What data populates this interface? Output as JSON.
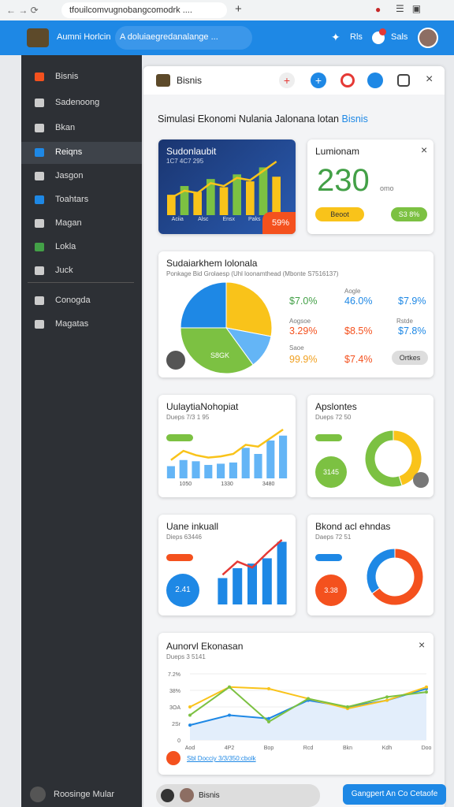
{
  "browser": {
    "url": "tfouilcomvugnobangcomodrk ...."
  },
  "header": {
    "brand": "Aumni Horlcin",
    "search": "A doluiaegredanalange ...",
    "links": [
      "Rls",
      "Sals"
    ]
  },
  "sidebar": {
    "items": [
      "Bisnis",
      "Sadenoong",
      "Bkan",
      "Reiqns",
      "Jasgon",
      "Toahtars",
      "Magan",
      "Lokla",
      "Juck",
      "Conogda",
      "Magatas"
    ],
    "active": 3,
    "footer": "Roosinge Mular"
  },
  "panel": {
    "title": "Bisnis",
    "heading": "Simulasi Ekonomi Nulania Jalonana lotan",
    "heading_link": "Bisnis"
  },
  "growth": {
    "title": "Sudonlaubit",
    "subtitle": "1C7 4C7 295",
    "categories": [
      "Aciia",
      "Alsc",
      "Ensx",
      "Paks"
    ],
    "bars": [
      35,
      50,
      40,
      62,
      48,
      70,
      58,
      82,
      66
    ],
    "bar_colors": [
      "#f9c31a",
      "#7cc142"
    ],
    "line": [
      30,
      42,
      38,
      55,
      50,
      64,
      60,
      76,
      92
    ],
    "line_color": "#f9c31a",
    "badge": "59%"
  },
  "summary": {
    "title": "Lumionam",
    "value": "230",
    "unit": "omo",
    "buttons": [
      "Beoot",
      "S3 8%"
    ]
  },
  "share": {
    "title": "Sudaiarkhem lolonala",
    "subtitle": "Ponkage Bid Grolaesp (Uhl loonamthead (Mbonte S7516137)",
    "pie": {
      "values": [
        28,
        12,
        35,
        25
      ],
      "colors": [
        "#f9c31a",
        "#64b5f6",
        "#7cc142",
        "#1e88e5"
      ]
    },
    "pie_label": "S8GK",
    "notes": [
      "Aogle",
      "Aogsoe",
      "Rstde",
      "Saoe"
    ],
    "stats": [
      {
        "text": "$7.0%",
        "color": "#43a047"
      },
      {
        "text": "46.0%",
        "color": "#1e88e5"
      },
      {
        "text": "$7.9%",
        "color": "#1e88e5"
      },
      {
        "text": "3.29%",
        "color": "#f4511e"
      },
      {
        "text": "$8.5%",
        "color": "#f4511e"
      },
      {
        "text": "$7.8%",
        "color": "#1e88e5"
      },
      {
        "text": "99.9%",
        "color": "#f0a020"
      },
      {
        "text": "$7.4%",
        "color": "#f4511e"
      }
    ],
    "button": "Ortkes"
  },
  "trend": {
    "title": "UulaytiaNohopiat",
    "subtitle": "Dueps 7/3 1 95",
    "categories": [
      "1050",
      "1330",
      "3480"
    ],
    "bars": [
      20,
      30,
      28,
      22,
      24,
      26,
      50,
      40,
      62,
      70
    ],
    "bar_colors": [
      "#64b5f6"
    ],
    "line": [
      30,
      45,
      38,
      34,
      36,
      40,
      55,
      52,
      66,
      80
    ],
    "line_color": "#f9c31a"
  },
  "ratio": {
    "title": "Apslontes",
    "subtitle": "Dueps 72 50",
    "circle": "3145",
    "donut": {
      "values": [
        45,
        55
      ],
      "colors": [
        "#f9c31a",
        "#7cc142"
      ]
    }
  },
  "income": {
    "title": "Uane inkuall",
    "subtitle": "Dieps 63446",
    "circle": "2.41",
    "bars": [
      40,
      55,
      62,
      70,
      95
    ],
    "bar_colors": [
      "#1e88e5"
    ],
    "line": [
      45,
      65,
      56,
      78,
      98
    ],
    "line_color": "#e53935"
  },
  "balance": {
    "title": "Bkond acl ehndas",
    "subtitle": "Daeps 72 51",
    "circle": "3.38",
    "donut": {
      "values": [
        65,
        35
      ],
      "colors": [
        "#f4511e",
        "#1e88e5"
      ]
    }
  },
  "annual": {
    "title": "Aunorvl Ekonasan",
    "subtitle": "Dueps 3 5141",
    "categories": [
      "Aod",
      "4P2",
      "Bop",
      "Rcd",
      "Bkn",
      "Kdh",
      "Doo"
    ],
    "ylim": [
      0,
      4
    ],
    "yticks": [
      0,
      {
        "value": 1,
        "label": "2Sr"
      },
      {
        "value": 2,
        "label": "3OA"
      },
      {
        "value": 3,
        "label": "38%"
      },
      {
        "value": 4,
        "label": "7.2%"
      }
    ],
    "series": [
      {
        "color": "#1e88e5",
        "values": [
          0.9,
          1.5,
          1.3,
          2.4,
          2.0,
          2.4,
          3.1
        ]
      },
      {
        "color": "#f9c31a",
        "values": [
          2.0,
          3.2,
          3.1,
          2.5,
          1.9,
          2.4,
          3.2
        ]
      },
      {
        "color": "#7cc142",
        "values": [
          1.5,
          3.2,
          1.1,
          2.5,
          2.0,
          2.6,
          2.9
        ]
      }
    ],
    "footer": "Sbl Docciy 3/3/350:cbolk"
  },
  "footer": {
    "tab": "Bisnis",
    "button": "Gangpert An Co Cetaofe"
  }
}
